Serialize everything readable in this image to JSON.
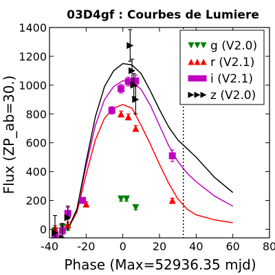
{
  "chart_data": {
    "type": "scatter",
    "title": "03D4gf : Courbes de Lumiere",
    "xlabel": "Phase (Max=52936.35 mjd)",
    "ylabel": "Flux (ZP_ab=30.)",
    "xlim": [
      -40,
      80
    ],
    "ylim": [
      -60,
      1400
    ],
    "xticks": [
      "-40",
      "-20",
      "0",
      "20",
      "40",
      "60",
      "80"
    ],
    "yticks": [
      "0",
      "200",
      "400",
      "600",
      "800",
      "1000",
      "1200",
      "1400"
    ],
    "grid": false,
    "legend_position": "top-right",
    "vline_x": 33,
    "series": [
      {
        "name": "g (V2.0)",
        "color": "#008000",
        "marker": "triangle-down",
        "points": [
          {
            "x": -37,
            "y": -10,
            "err": 20
          },
          {
            "x": -33,
            "y": 15,
            "err": 20
          },
          {
            "x": -30,
            "y": 10,
            "err": 20
          },
          {
            "x": -1,
            "y": 210,
            "err": 15
          },
          {
            "x": 2,
            "y": 210,
            "err": 15
          },
          {
            "x": 7,
            "y": 150,
            "err": 15
          }
        ],
        "model": []
      },
      {
        "name": "r (V2.1)",
        "color": "#ff0000",
        "marker": "triangle-up",
        "points": [
          {
            "x": -37,
            "y": 5,
            "err": 20
          },
          {
            "x": -33,
            "y": -5,
            "err": 15
          },
          {
            "x": -30,
            "y": 30,
            "err": 20
          },
          {
            "x": -20,
            "y": 175,
            "err": 15
          },
          {
            "x": -1,
            "y": 800,
            "err": 20
          },
          {
            "x": 3,
            "y": 780,
            "err": 20
          },
          {
            "x": 7,
            "y": 700,
            "err": 20
          },
          {
            "x": 27,
            "y": 200,
            "err": 15
          }
        ],
        "model": [
          [
            -30,
            0
          ],
          [
            -25,
            120
          ],
          [
            -20,
            380
          ],
          [
            -15,
            620
          ],
          [
            -10,
            770
          ],
          [
            -5,
            840
          ],
          [
            0,
            865
          ],
          [
            5,
            840
          ],
          [
            10,
            720
          ],
          [
            15,
            590
          ],
          [
            20,
            450
          ],
          [
            25,
            320
          ],
          [
            30,
            210
          ],
          [
            35,
            140
          ],
          [
            40,
            100
          ],
          [
            50,
            65
          ],
          [
            60,
            45
          ]
        ]
      },
      {
        "name": "i (V2.1)",
        "color": "#bf00bf",
        "marker": "square",
        "points": [
          {
            "x": -37,
            "y": -45,
            "err": 30
          },
          {
            "x": -33,
            "y": -10,
            "err": 30
          },
          {
            "x": -30,
            "y": 110,
            "err": 40
          },
          {
            "x": -22,
            "y": 200,
            "err": 20
          },
          {
            "x": -6,
            "y": 825,
            "err": 25
          },
          {
            "x": -1,
            "y": 975,
            "err": 30
          },
          {
            "x": 3,
            "y": 1025,
            "err": 30
          },
          {
            "x": 7,
            "y": 1030,
            "err": 40
          },
          {
            "x": 27,
            "y": 510,
            "err": 40
          }
        ],
        "model": [
          [
            -30,
            0
          ],
          [
            -25,
            140
          ],
          [
            -20,
            440
          ],
          [
            -15,
            720
          ],
          [
            -10,
            900
          ],
          [
            -5,
            990
          ],
          [
            0,
            1030
          ],
          [
            5,
            1025
          ],
          [
            10,
            970
          ],
          [
            15,
            860
          ],
          [
            20,
            720
          ],
          [
            25,
            580
          ],
          [
            30,
            470
          ],
          [
            35,
            390
          ],
          [
            40,
            330
          ],
          [
            50,
            230
          ],
          [
            60,
            160
          ]
        ]
      },
      {
        "name": "z (V2.0)",
        "color": "#000000",
        "marker": "triangle-right",
        "points": [
          {
            "x": -37,
            "y": -25,
            "err": 120
          },
          {
            "x": -33,
            "y": -60,
            "err": 100
          },
          {
            "x": -30,
            "y": 80,
            "err": 80
          },
          {
            "x": 4,
            "y": 1275,
            "err": 110
          },
          {
            "x": 5,
            "y": 1100,
            "err": 80
          },
          {
            "x": 6,
            "y": 1000,
            "err": 80
          },
          {
            "x": 7,
            "y": 900,
            "err": 100
          }
        ],
        "model": [
          [
            -30,
            0
          ],
          [
            -25,
            140
          ],
          [
            -20,
            470
          ],
          [
            -15,
            780
          ],
          [
            -10,
            990
          ],
          [
            -5,
            1100
          ],
          [
            0,
            1150
          ],
          [
            5,
            1140
          ],
          [
            10,
            1080
          ],
          [
            15,
            960
          ],
          [
            20,
            830
          ],
          [
            25,
            710
          ],
          [
            30,
            620
          ],
          [
            35,
            560
          ],
          [
            40,
            500
          ],
          [
            50,
            360
          ],
          [
            60,
            255
          ]
        ]
      }
    ]
  }
}
